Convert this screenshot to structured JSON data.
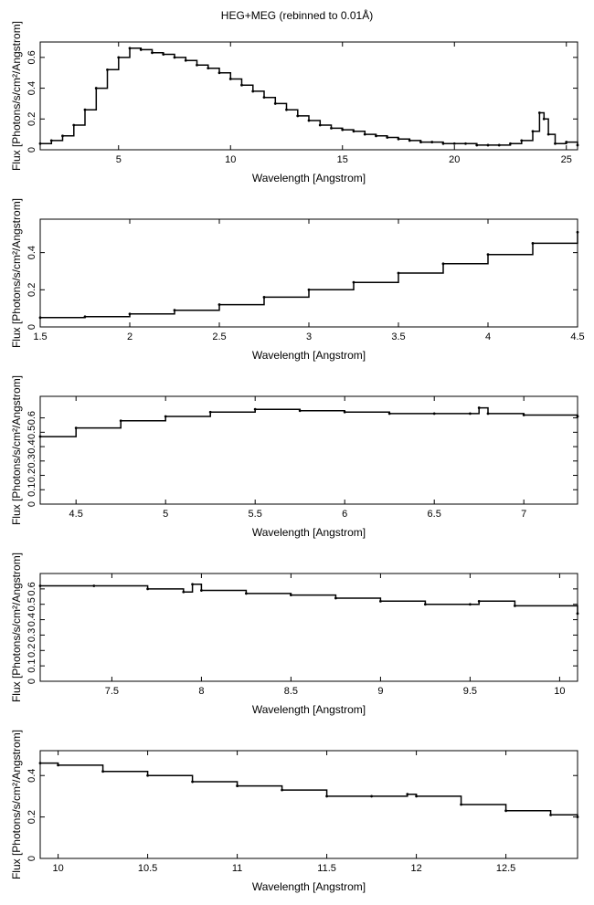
{
  "title": "HEG+MEG (rebinned to 0.01Å)",
  "chart_data": [
    {
      "type": "line",
      "xlabel": "Wavelength [Angstrom]",
      "ylabel": "Flux [Photons/s/cm²/Angstrom]",
      "xlim": [
        1.5,
        25.5
      ],
      "ylim": [
        0,
        0.7
      ],
      "xticks": [
        5,
        10,
        15,
        20,
        25
      ],
      "yticks": [
        0,
        0.2,
        0.4,
        0.6
      ],
      "x": [
        1.5,
        2,
        2.5,
        3,
        3.5,
        4,
        4.5,
        5,
        5.5,
        6,
        6.5,
        7,
        7.5,
        8,
        8.5,
        9,
        9.5,
        10,
        10.5,
        11,
        11.5,
        12,
        12.5,
        13,
        13.5,
        14,
        14.5,
        15,
        15.5,
        16,
        16.5,
        17,
        17.5,
        18,
        18.5,
        19,
        19.5,
        20,
        20.5,
        21,
        21.5,
        22,
        22.5,
        23,
        23.5,
        23.8,
        24,
        24.2,
        24.5,
        25,
        25.5
      ],
      "y": [
        0.04,
        0.06,
        0.09,
        0.16,
        0.26,
        0.4,
        0.52,
        0.6,
        0.66,
        0.65,
        0.63,
        0.62,
        0.6,
        0.58,
        0.55,
        0.53,
        0.5,
        0.46,
        0.42,
        0.38,
        0.34,
        0.3,
        0.26,
        0.22,
        0.19,
        0.16,
        0.14,
        0.13,
        0.12,
        0.1,
        0.09,
        0.08,
        0.07,
        0.06,
        0.05,
        0.05,
        0.04,
        0.04,
        0.04,
        0.03,
        0.03,
        0.03,
        0.04,
        0.06,
        0.12,
        0.24,
        0.2,
        0.1,
        0.04,
        0.05,
        0.03
      ]
    },
    {
      "type": "line",
      "xlabel": "Wavelength [Angstrom]",
      "ylabel": "Flux [Photons/s/cm²/Angstrom]",
      "xlim": [
        1.5,
        4.5
      ],
      "ylim": [
        0,
        0.58
      ],
      "xticks": [
        1.5,
        2,
        2.5,
        3,
        3.5,
        4,
        4.5
      ],
      "yticks": [
        0,
        0.2,
        0.4
      ],
      "x": [
        1.5,
        1.75,
        2,
        2.25,
        2.5,
        2.75,
        3,
        3.25,
        3.5,
        3.75,
        4,
        4.25,
        4.5
      ],
      "y": [
        0.05,
        0.055,
        0.07,
        0.09,
        0.12,
        0.16,
        0.2,
        0.24,
        0.29,
        0.34,
        0.39,
        0.45,
        0.51
      ]
    },
    {
      "type": "line",
      "xlabel": "Wavelength [Angstrom]",
      "ylabel": "Flux [Photons/s/cm²/Angstrom]",
      "xlim": [
        4.3,
        7.3
      ],
      "ylim": [
        0,
        0.75
      ],
      "xticks": [
        4.5,
        5,
        5.5,
        6,
        6.5,
        7
      ],
      "yticks": [
        0,
        0.1,
        0.2,
        0.3,
        0.4,
        0.5,
        0.6
      ],
      "x": [
        4.3,
        4.5,
        4.75,
        5,
        5.25,
        5.5,
        5.75,
        6,
        6.25,
        6.5,
        6.7,
        6.75,
        6.8,
        7,
        7.3
      ],
      "y": [
        0.47,
        0.53,
        0.58,
        0.61,
        0.64,
        0.66,
        0.65,
        0.64,
        0.63,
        0.63,
        0.63,
        0.67,
        0.63,
        0.62,
        0.61
      ]
    },
    {
      "type": "line",
      "xlabel": "Wavelength [Angstrom]",
      "ylabel": "Flux [Photons/s/cm²/Angstrom]",
      "xlim": [
        7.1,
        10.1
      ],
      "ylim": [
        0,
        0.7
      ],
      "xticks": [
        7.5,
        8,
        8.5,
        9,
        9.5,
        10
      ],
      "yticks": [
        0,
        0.1,
        0.2,
        0.3,
        0.4,
        0.5,
        0.6
      ],
      "x": [
        7.1,
        7.4,
        7.7,
        7.9,
        7.95,
        8,
        8.25,
        8.5,
        8.75,
        9,
        9.25,
        9.5,
        9.55,
        9.75,
        10.1
      ],
      "y": [
        0.62,
        0.62,
        0.6,
        0.58,
        0.63,
        0.59,
        0.57,
        0.56,
        0.54,
        0.52,
        0.5,
        0.5,
        0.52,
        0.49,
        0.44
      ]
    },
    {
      "type": "line",
      "xlabel": "Wavelength [Angstrom]",
      "ylabel": "Flux [Photons/s/cm²/Angstrom]",
      "xlim": [
        9.9,
        12.9
      ],
      "ylim": [
        0,
        0.52
      ],
      "xticks": [
        10,
        10.5,
        11,
        11.5,
        12,
        12.5
      ],
      "yticks": [
        0,
        0.2,
        0.4
      ],
      "x": [
        9.9,
        10,
        10.25,
        10.5,
        10.75,
        11,
        11.25,
        11.5,
        11.75,
        11.95,
        12,
        12.25,
        12.5,
        12.75,
        12.9
      ],
      "y": [
        0.46,
        0.45,
        0.42,
        0.4,
        0.37,
        0.35,
        0.33,
        0.3,
        0.3,
        0.31,
        0.3,
        0.26,
        0.23,
        0.21,
        0.2
      ]
    }
  ]
}
